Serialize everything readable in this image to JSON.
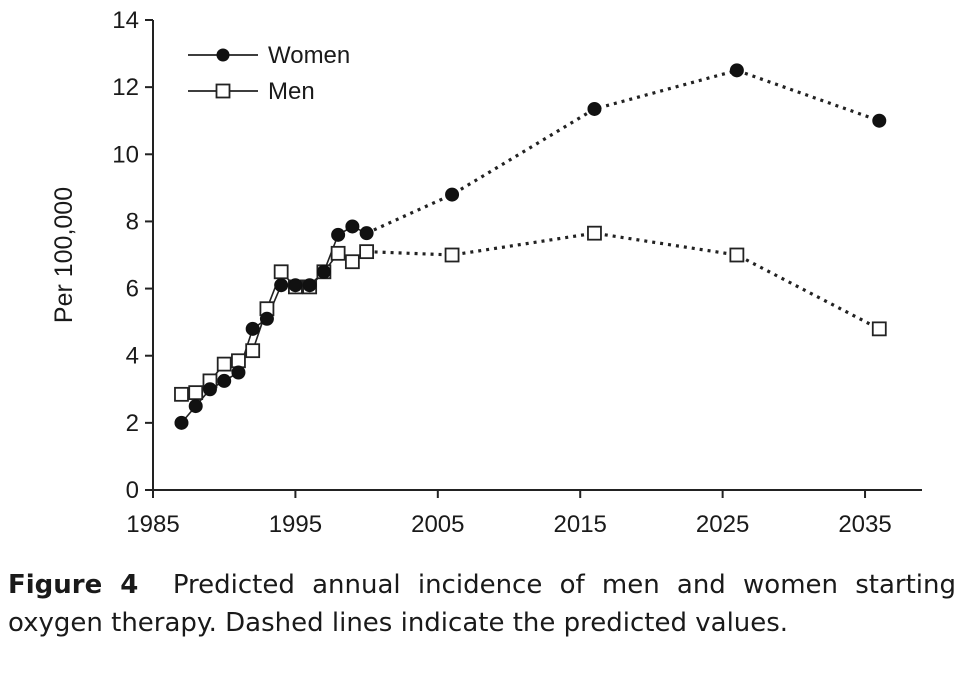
{
  "figure": {
    "label": "Figure 4",
    "caption": "Predicted annual incidence of men and women starting oxygen therapy. Dashed lines indicate the predicted values."
  },
  "chart_data": {
    "type": "line",
    "ylabel": "Per 100,000",
    "xlabel": "",
    "xlim": [
      1985,
      2039
    ],
    "ylim": [
      0,
      14
    ],
    "x_ticks": [
      1985,
      1995,
      2005,
      2015,
      2025,
      2035
    ],
    "y_ticks": [
      0,
      2,
      4,
      6,
      8,
      10,
      12,
      14
    ],
    "grid": false,
    "legend_position": "top-left",
    "predicted_from_x": 2000,
    "series": [
      {
        "name": "Women",
        "marker": "filled-circle",
        "x": [
          1987,
          1988,
          1989,
          1990,
          1991,
          1992,
          1993,
          1994,
          1995,
          1996,
          1997,
          1998,
          1999,
          2000,
          2006,
          2016,
          2026,
          2036
        ],
        "values": [
          2.0,
          2.5,
          3.0,
          3.25,
          3.5,
          4.8,
          5.1,
          6.1,
          6.1,
          6.1,
          6.5,
          7.6,
          7.85,
          7.65,
          8.8,
          11.35,
          12.5,
          11.0
        ]
      },
      {
        "name": "Men",
        "marker": "open-square",
        "x": [
          1987,
          1988,
          1989,
          1990,
          1991,
          1992,
          1993,
          1994,
          1995,
          1996,
          1997,
          1998,
          1999,
          2000,
          2006,
          2016,
          2026,
          2036
        ],
        "values": [
          2.85,
          2.9,
          3.25,
          3.75,
          3.85,
          4.15,
          5.4,
          6.5,
          6.05,
          6.05,
          6.5,
          7.05,
          6.8,
          7.1,
          7.0,
          7.65,
          7.0,
          4.8
        ]
      }
    ]
  }
}
